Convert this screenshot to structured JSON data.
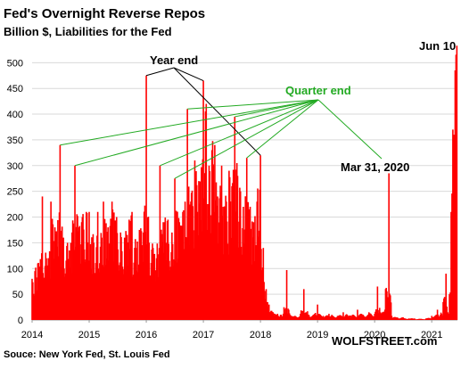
{
  "chart_data": {
    "type": "bar",
    "title": "Fed's Overnight Reverse Repos",
    "subtitle": "Billion $, Liabilities for the Fed",
    "xlabel": "",
    "ylabel": "",
    "ylim": [
      0,
      530
    ],
    "xlim": [
      2014.0,
      2021.45
    ],
    "yticks": [
      0,
      50,
      100,
      150,
      200,
      250,
      300,
      350,
      400,
      450,
      500
    ],
    "xticks": [
      2014,
      2015,
      2016,
      2017,
      2018,
      2019,
      2020,
      2021
    ],
    "grid": true,
    "bar_color": "#ff0000",
    "series": [
      {
        "points": [
          [
            2014.0,
            80
          ],
          [
            2014.05,
            95
          ],
          [
            2014.1,
            110
          ],
          [
            2014.18,
            240
          ],
          [
            2014.25,
            120
          ],
          [
            2014.33,
            230
          ],
          [
            2014.4,
            180
          ],
          [
            2014.49,
            340
          ],
          [
            2014.55,
            160
          ],
          [
            2014.62,
            150
          ],
          [
            2014.7,
            170
          ],
          [
            2014.75,
            300
          ],
          [
            2014.82,
            180
          ],
          [
            2014.88,
            200
          ],
          [
            2014.95,
            210
          ],
          [
            2015.0,
            210
          ],
          [
            2015.08,
            150
          ],
          [
            2015.15,
            210
          ],
          [
            2015.22,
            160
          ],
          [
            2015.25,
            230
          ],
          [
            2015.33,
            180
          ],
          [
            2015.4,
            230
          ],
          [
            2015.48,
            200
          ],
          [
            2015.55,
            170
          ],
          [
            2015.62,
            160
          ],
          [
            2015.7,
            195
          ],
          [
            2015.75,
            210
          ],
          [
            2015.82,
            140
          ],
          [
            2015.88,
            175
          ],
          [
            2015.95,
            170
          ],
          [
            2016.0,
            475
          ],
          [
            2016.05,
            150
          ],
          [
            2016.12,
            140
          ],
          [
            2016.18,
            120
          ],
          [
            2016.24,
            300
          ],
          [
            2016.32,
            190
          ],
          [
            2016.38,
            195
          ],
          [
            2016.45,
            170
          ],
          [
            2016.5,
            275
          ],
          [
            2016.58,
            190
          ],
          [
            2016.64,
            210
          ],
          [
            2016.68,
            230
          ],
          [
            2016.72,
            410
          ],
          [
            2016.78,
            230
          ],
          [
            2016.85,
            310
          ],
          [
            2016.92,
            270
          ],
          [
            2017.0,
            465
          ],
          [
            2017.05,
            420
          ],
          [
            2017.1,
            300
          ],
          [
            2017.15,
            330
          ],
          [
            2017.2,
            340
          ],
          [
            2017.25,
            240
          ],
          [
            2017.32,
            300
          ],
          [
            2017.38,
            220
          ],
          [
            2017.45,
            290
          ],
          [
            2017.5,
            260
          ],
          [
            2017.55,
            395
          ],
          [
            2017.6,
            280
          ],
          [
            2017.65,
            250
          ],
          [
            2017.7,
            220
          ],
          [
            2017.76,
            315
          ],
          [
            2017.82,
            220
          ],
          [
            2017.88,
            190
          ],
          [
            2017.94,
            230
          ],
          [
            2018.0,
            320
          ],
          [
            2018.05,
            140
          ],
          [
            2018.1,
            60
          ],
          [
            2018.15,
            30
          ],
          [
            2018.22,
            15
          ],
          [
            2018.3,
            12
          ],
          [
            2018.35,
            10
          ],
          [
            2018.4,
            12
          ],
          [
            2018.46,
            97
          ],
          [
            2018.52,
            10
          ],
          [
            2018.6,
            8
          ],
          [
            2018.7,
            12
          ],
          [
            2018.76,
            60
          ],
          [
            2018.85,
            10
          ],
          [
            2018.95,
            12
          ],
          [
            2019.0,
            30
          ],
          [
            2019.1,
            8
          ],
          [
            2019.2,
            12
          ],
          [
            2019.25,
            10
          ],
          [
            2019.35,
            8
          ],
          [
            2019.45,
            15
          ],
          [
            2019.52,
            10
          ],
          [
            2019.6,
            8
          ],
          [
            2019.7,
            20
          ],
          [
            2019.8,
            10
          ],
          [
            2019.9,
            15
          ],
          [
            2020.0,
            12
          ],
          [
            2020.05,
            65
          ],
          [
            2020.1,
            15
          ],
          [
            2020.18,
            20
          ],
          [
            2020.25,
            285
          ],
          [
            2020.3,
            8
          ],
          [
            2020.4,
            5
          ],
          [
            2020.5,
            5
          ],
          [
            2020.6,
            3
          ],
          [
            2020.7,
            3
          ],
          [
            2020.8,
            2
          ],
          [
            2020.9,
            3
          ],
          [
            2021.0,
            8
          ],
          [
            2021.1,
            20
          ],
          [
            2021.15,
            10
          ],
          [
            2021.2,
            35
          ],
          [
            2021.25,
            90
          ],
          [
            2021.28,
            15
          ],
          [
            2021.31,
            50
          ],
          [
            2021.34,
            210
          ],
          [
            2021.37,
            370
          ],
          [
            2021.39,
            360
          ],
          [
            2021.41,
            485
          ],
          [
            2021.44,
            533
          ]
        ]
      }
    ],
    "annotations": [
      {
        "text": "Year end",
        "color": "#000000",
        "points_to": [
          [
            2016.0,
            475
          ],
          [
            2017.0,
            465
          ],
          [
            2018.0,
            320
          ]
        ]
      },
      {
        "text": "Quarter end",
        "color": "#22aa22",
        "points_to": [
          [
            2014.49,
            340
          ],
          [
            2014.75,
            300
          ],
          [
            2016.24,
            300
          ],
          [
            2016.5,
            275
          ],
          [
            2016.72,
            410
          ],
          [
            2017.55,
            395
          ],
          [
            2017.76,
            315
          ]
        ]
      },
      {
        "text": "Mar 31, 2020",
        "color": "#000000",
        "points_to": []
      },
      {
        "text": "Jun 10",
        "color": "#000000",
        "points_to": []
      }
    ],
    "source": "Souce: New York Fed, St. Louis Fed",
    "watermark": "WOLFSTREET.com"
  }
}
